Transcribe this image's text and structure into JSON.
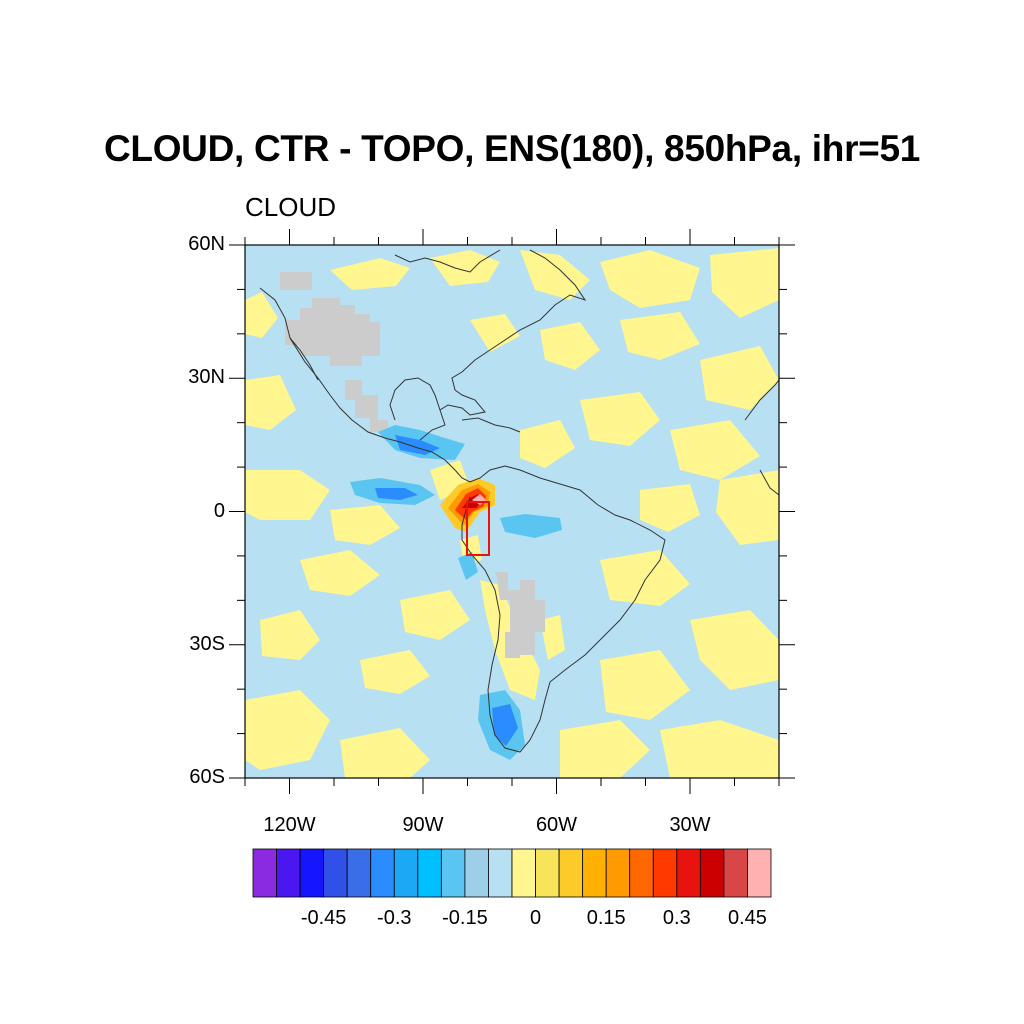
{
  "title": "CLOUD, CTR - TOPO, ENS(180), 850hPa, ihr=51",
  "subtitle": "CLOUD",
  "lat_labels": [
    {
      "text": "60N",
      "value": 60
    },
    {
      "text": "30N",
      "value": 30
    },
    {
      "text": "0",
      "value": 0
    },
    {
      "text": "30S",
      "value": -30
    },
    {
      "text": "60S",
      "value": -60
    }
  ],
  "lon_labels": [
    {
      "text": "120W",
      "value": -120
    },
    {
      "text": "90W",
      "value": -90
    },
    {
      "text": "60W",
      "value": -60
    },
    {
      "text": "30W",
      "value": -30
    }
  ],
  "map_extent": {
    "lon": [
      -130,
      -10
    ],
    "lat": [
      -60,
      60
    ]
  },
  "box_region": {
    "lon": [
      -80,
      -75
    ],
    "lat": [
      -10,
      2
    ]
  },
  "colorbar": {
    "colors": [
      "#8a2be2",
      "#4b17f0",
      "#1515ff",
      "#3050e8",
      "#3a6ee8",
      "#2a8cff",
      "#1ba8f5",
      "#00bfff",
      "#5ac5f0",
      "#9dcfe8",
      "#b7e0f3",
      "#fff68f",
      "#f7e45a",
      "#fccb29",
      "#ffb000",
      "#ff9b00",
      "#ff6800",
      "#ff3a00",
      "#e8130e",
      "#cc0000",
      "#d94646",
      "#ffb0b0"
    ],
    "labels": [
      {
        "text": "-0.45",
        "index": 3
      },
      {
        "text": "-0.3",
        "index": 6
      },
      {
        "text": "-0.15",
        "index": 9
      },
      {
        "text": "0",
        "index": 12
      },
      {
        "text": "0.15",
        "index": 15
      },
      {
        "text": "0.3",
        "index": 18
      },
      {
        "text": "0.45",
        "index": 21
      }
    ]
  },
  "field_colors": {
    "background": "#b7e0f3",
    "positive_light": "#fff68f",
    "topography_mask": "#cccccc",
    "negative_mid": "#5ac5f0",
    "negative_strong": "#2a8cff",
    "positive_strong": "#ff3a00",
    "positive_max": "#cc0000",
    "box": "#e8130e"
  }
}
